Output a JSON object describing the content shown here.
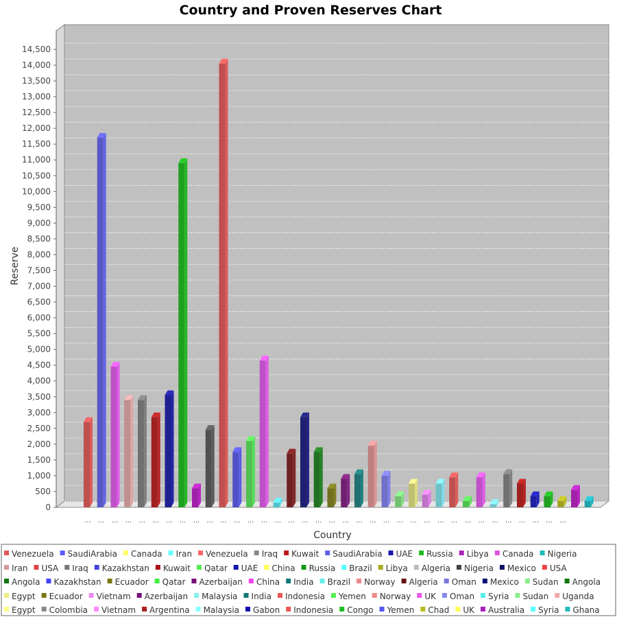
{
  "chart_data": {
    "type": "bar",
    "title": "Country and Proven Reserves Chart",
    "xlabel": "Country",
    "ylabel": "Reserve",
    "ylim": [
      0,
      14500
    ],
    "ytick_step": 500,
    "grid": true,
    "legend_position": "bottom",
    "category_label": "...",
    "series": [
      {
        "name": "Venezuela",
        "color": "#e05a5a",
        "value": 2700
      },
      {
        "name": "SaudiArabia",
        "color": "#5b5bff",
        "value": 11700
      },
      {
        "name": "Canada",
        "color": "#ffff66",
        "value": 0
      },
      {
        "name": "Iran",
        "color": "#66ffff",
        "value": 0
      },
      {
        "name": "Venezuela",
        "color": "#ff6666",
        "value": 0
      },
      {
        "name": "Iraq",
        "color": "#888888",
        "value": 0
      },
      {
        "name": "Kuwait",
        "color": "#bb1a1a",
        "value": 0
      },
      {
        "name": "SaudiArabia",
        "color": "#5f5fe6",
        "value": 0
      },
      {
        "name": "UAE",
        "color": "#1a1aaa",
        "value": 0
      },
      {
        "name": "Russia",
        "color": "#22bb22",
        "value": 0
      },
      {
        "name": "Libya",
        "color": "#aa22bb",
        "value": 0
      },
      {
        "name": "Canada",
        "color": "#dd55dd",
        "value": 4450
      },
      {
        "name": "Nigeria",
        "color": "#22bbbb",
        "value": 0
      },
      {
        "name": "Iran",
        "color": "#d49a9a",
        "value": 3400
      },
      {
        "name": "USA",
        "color": "#dd4444",
        "value": 0
      },
      {
        "name": "Iraq",
        "color": "#777777",
        "value": 3400
      },
      {
        "name": "Kazakhstan",
        "color": "#4444dd",
        "value": 0
      },
      {
        "name": "Kuwait",
        "color": "#aa1111",
        "value": 2850
      },
      {
        "name": "Qatar",
        "color": "#55ee55",
        "value": 0
      },
      {
        "name": "UAE",
        "color": "#1111aa",
        "value": 3550
      },
      {
        "name": "China",
        "color": "#ffff55",
        "value": 0
      },
      {
        "name": "Russia",
        "color": "#119911",
        "value": 10900
      },
      {
        "name": "Brazil",
        "color": "#55ffff",
        "value": 0
      },
      {
        "name": "Libya",
        "color": "#aaaa22",
        "value": 0
      },
      {
        "name": "Algeria",
        "color": "#bbbbbb",
        "value": 0
      },
      {
        "name": "Nigeria",
        "color": "#444444",
        "value": 0
      },
      {
        "name": "Mexico",
        "color": "#111166",
        "value": 0
      },
      {
        "name": "USA",
        "color": "#ee4444",
        "value": 0
      },
      {
        "name": "Angola",
        "color": "#117711",
        "value": 0
      },
      {
        "name": "Kazakhstan",
        "color": "#4444ff",
        "value": 0
      },
      {
        "name": "Ecuador",
        "color": "#777711",
        "value": 0
      },
      {
        "name": "Qatar",
        "color": "#44ee44",
        "value": 0
      },
      {
        "name": "Azerbaijan",
        "color": "#771177",
        "value": 0
      },
      {
        "name": "China",
        "color": "#ee44ee",
        "value": 0
      },
      {
        "name": "India",
        "color": "#117777",
        "value": 0
      },
      {
        "name": "Brazil",
        "color": "#66eeee",
        "value": 0
      },
      {
        "name": "Norway",
        "color": "#ee8888",
        "value": 0
      },
      {
        "name": "Algeria",
        "color": "#661111",
        "value": 0
      },
      {
        "name": "Oman",
        "color": "#7777dd",
        "value": 0
      },
      {
        "name": "Mexico",
        "color": "#111177",
        "value": 0
      },
      {
        "name": "Sudan",
        "color": "#88ee88",
        "value": 0
      },
      {
        "name": "Angola",
        "color": "#117711",
        "value": 0
      },
      {
        "name": "Egypt",
        "color": "#eeee88",
        "value": 0
      },
      {
        "name": "Ecuador",
        "color": "#777711",
        "value": 0
      },
      {
        "name": "Vietnam",
        "color": "#ee88ee",
        "value": 0
      },
      {
        "name": "Azerbaijan",
        "color": "#771177",
        "value": 0
      },
      {
        "name": "Malaysia",
        "color": "#88eeee",
        "value": 0
      },
      {
        "name": "India",
        "color": "#117777",
        "value": 0
      },
      {
        "name": "Indonesia",
        "color": "#ee5555",
        "value": 0
      },
      {
        "name": "Yemen",
        "color": "#55ee55",
        "value": 0
      },
      {
        "name": "Norway",
        "color": "#ee8888",
        "value": 0
      },
      {
        "name": "UK",
        "color": "#ee55ee",
        "value": 0
      },
      {
        "name": "Oman",
        "color": "#8888ee",
        "value": 0
      },
      {
        "name": "Syria",
        "color": "#55eeee",
        "value": 0
      },
      {
        "name": "Sudan",
        "color": "#88ee88",
        "value": 0
      },
      {
        "name": "Uganda",
        "color": "#eeaaaa",
        "value": 0
      },
      {
        "name": "Egypt",
        "color": "#ffff88",
        "value": 0
      },
      {
        "name": "Colombia",
        "color": "#888888",
        "value": 0
      },
      {
        "name": "Vietnam",
        "color": "#ff88ff",
        "value": 0
      },
      {
        "name": "Argentina",
        "color": "#aa2222",
        "value": 0
      },
      {
        "name": "Malaysia",
        "color": "#88ffff",
        "value": 0
      },
      {
        "name": "Gabon",
        "color": "#1111aa",
        "value": 0
      },
      {
        "name": "Indonesia",
        "color": "#ee5555",
        "value": 0
      },
      {
        "name": "Congo",
        "color": "#22bb22",
        "value": 0
      },
      {
        "name": "Yemen",
        "color": "#5555ee",
        "value": 0
      },
      {
        "name": "Chad",
        "color": "#bbbb22",
        "value": 0
      },
      {
        "name": "UK",
        "color": "#ffff55",
        "value": 0
      },
      {
        "name": "Australia",
        "color": "#aa22bb",
        "value": 0
      },
      {
        "name": "Syria",
        "color": "#55ffff",
        "value": 0
      },
      {
        "name": "Ghana",
        "color": "#22bbbb",
        "value": 0
      },
      {
        "name": "Uganda",
        "color": "#ffaaaa",
        "value": 0
      },
      {
        "name": "Colombia",
        "color": "#888888",
        "value": 0
      },
      {
        "name": "Argentina",
        "color": "#cc1111",
        "value": 0
      },
      {
        "name": "Gabon",
        "color": "#1111aa",
        "value": 0
      },
      {
        "name": "Congo",
        "color": "#22cc22",
        "value": 0
      },
      {
        "name": "Chad",
        "color": "#bbbb22",
        "value": 0
      },
      {
        "name": "Australia",
        "color": "#bb22bb",
        "value": 0
      },
      {
        "name": "Ghana",
        "color": "#22bbbb",
        "value": 0
      }
    ],
    "bars": [
      {
        "color": "#c05050",
        "value": 2700
      },
      {
        "color": "#5858c8",
        "value": 11700
      },
      {
        "color": "#c050c8",
        "value": 4450
      },
      {
        "color": "#c09090",
        "value": 3400
      },
      {
        "color": "#707070",
        "value": 3400
      },
      {
        "color": "#a02020",
        "value": 2850
      },
      {
        "color": "#202090",
        "value": 3550
      },
      {
        "color": "#20a020",
        "value": 10900
      },
      {
        "color": "#a020a8",
        "value": 600
      },
      {
        "color": "#505050",
        "value": 2450
      },
      {
        "color": "#c05050",
        "value": 14050
      },
      {
        "color": "#5050c8",
        "value": 1750
      },
      {
        "color": "#50c050",
        "value": 2100
      },
      {
        "color": "#c050c8",
        "value": 4650
      },
      {
        "color": "#50c0c8",
        "value": 150
      },
      {
        "color": "#702020",
        "value": 1700
      },
      {
        "color": "#202070",
        "value": 2850
      },
      {
        "color": "#207020",
        "value": 1750
      },
      {
        "color": "#707020",
        "value": 600
      },
      {
        "color": "#702070",
        "value": 900
      },
      {
        "color": "#207070",
        "value": 1050
      },
      {
        "color": "#c08080",
        "value": 1950
      },
      {
        "color": "#7070c8",
        "value": 1000
      },
      {
        "color": "#70c070",
        "value": 350
      },
      {
        "color": "#c0c070",
        "value": 750
      },
      {
        "color": "#c070c8",
        "value": 400
      },
      {
        "color": "#70c0c8",
        "value": 750
      },
      {
        "color": "#c05050",
        "value": 950
      },
      {
        "color": "#50c050",
        "value": 200
      },
      {
        "color": "#c050c8",
        "value": 950
      },
      {
        "color": "#70c0c8",
        "value": 100
      },
      {
        "color": "#707070",
        "value": 1050
      },
      {
        "color": "#a02020",
        "value": 750
      },
      {
        "color": "#2020a0",
        "value": 350
      },
      {
        "color": "#20a020",
        "value": 350
      },
      {
        "color": "#a0a020",
        "value": 200
      },
      {
        "color": "#a020a8",
        "value": 550
      },
      {
        "color": "#20a0a8",
        "value": 200
      }
    ]
  }
}
